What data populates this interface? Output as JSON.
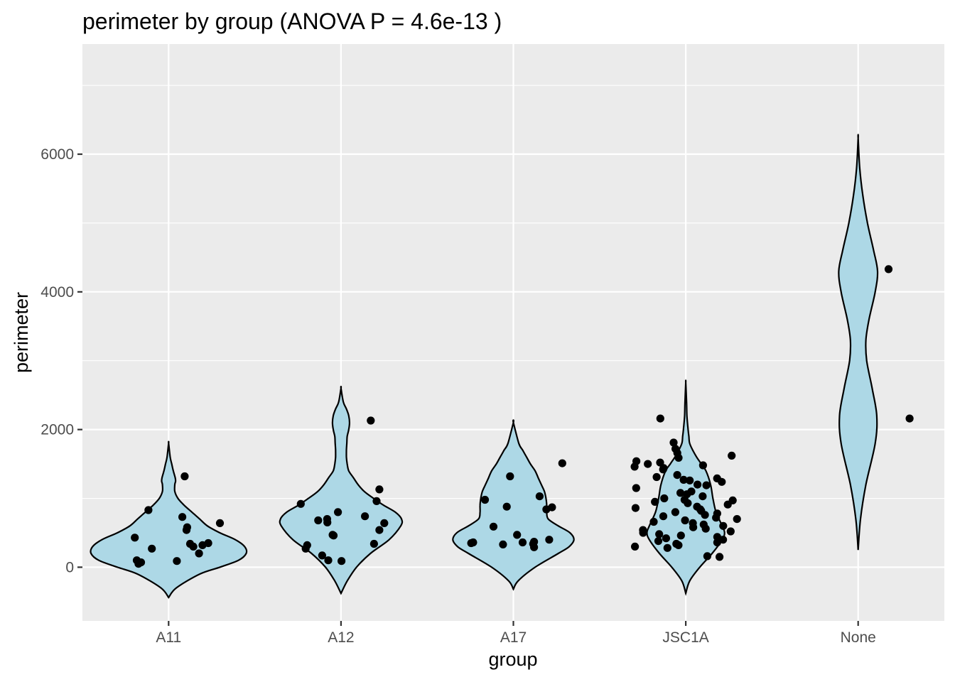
{
  "chart_data": {
    "type": "violin",
    "title": "perimeter by group (ANOVA P = 4.6e-13 )",
    "xlabel": "group",
    "ylabel": "perimeter",
    "categories": [
      "A11",
      "A12",
      "A17",
      "JSC1A",
      "None"
    ],
    "ylim": [
      -780,
      7600
    ],
    "yticks": [
      0,
      2000,
      4000,
      6000
    ],
    "ytick_labels": [
      "0",
      "2000",
      "4000",
      "6000"
    ],
    "grid": true,
    "legend": "none",
    "colors": {
      "violin_fill": "#add8e6",
      "violin_stroke": "#000000",
      "point": "#000000",
      "panel_bg": "#ebebeb",
      "grid": "#ffffff"
    },
    "violins": [
      {
        "group": "A11",
        "y": [
          -440,
          -300,
          -100,
          0,
          100,
          200,
          300,
          400,
          500,
          600,
          700,
          800,
          900,
          1000,
          1100,
          1200,
          1250,
          1300,
          1400,
          1500,
          1600,
          1800
        ],
        "w": [
          0,
          0.1,
          0.4,
          0.66,
          0.9,
          1.0,
          0.98,
          0.86,
          0.66,
          0.5,
          0.4,
          0.3,
          0.2,
          0.12,
          0.08,
          0.08,
          0.09,
          0.085,
          0.06,
          0.04,
          0.02,
          0
        ]
      },
      {
        "group": "A12",
        "y": [
          -380,
          -200,
          0,
          200,
          400,
          600,
          700,
          800,
          900,
          1000,
          1100,
          1200,
          1300,
          1400,
          1500,
          1600,
          1700,
          1800,
          1900,
          2000,
          2100,
          2200,
          2300,
          2400,
          2600
        ],
        "w": [
          0,
          0.08,
          0.2,
          0.38,
          0.62,
          0.77,
          0.78,
          0.7,
          0.55,
          0.42,
          0.3,
          0.22,
          0.16,
          0.1,
          0.08,
          0.07,
          0.07,
          0.075,
          0.08,
          0.1,
          0.11,
          0.1,
          0.07,
          0.03,
          0
        ]
      },
      {
        "group": "A17",
        "y": [
          -320,
          -200,
          0,
          200,
          300,
          400,
          500,
          600,
          700,
          800,
          900,
          1000,
          1100,
          1200,
          1300,
          1400,
          1500,
          1600,
          1700,
          1800,
          2100
        ],
        "w": [
          0,
          0.06,
          0.28,
          0.58,
          0.72,
          0.78,
          0.73,
          0.58,
          0.45,
          0.43,
          0.43,
          0.42,
          0.4,
          0.36,
          0.32,
          0.28,
          0.22,
          0.17,
          0.12,
          0.07,
          0
        ]
      },
      {
        "group": "JSC1A",
        "y": [
          -380,
          -200,
          0,
          200,
          400,
          500,
          600,
          800,
          1000,
          1200,
          1400,
          1500,
          1600,
          1700,
          1800,
          1900,
          2000,
          2200,
          2400,
          2680
        ],
        "w": [
          0,
          0.05,
          0.18,
          0.34,
          0.47,
          0.5,
          0.47,
          0.39,
          0.35,
          0.32,
          0.26,
          0.2,
          0.14,
          0.09,
          0.05,
          0.04,
          0.03,
          0.015,
          0.01,
          0
        ]
      },
      {
        "group": "None",
        "y": [
          250,
          700,
          1200,
          1800,
          2200,
          2600,
          3000,
          3300,
          3600,
          4000,
          4300,
          4600,
          5000,
          5400,
          5800,
          6230
        ],
        "w": [
          0,
          0.03,
          0.1,
          0.22,
          0.24,
          0.18,
          0.11,
          0.1,
          0.14,
          0.22,
          0.25,
          0.2,
          0.12,
          0.06,
          0.02,
          0
        ]
      }
    ],
    "points": [
      {
        "group": "A11",
        "values": [
          1320,
          830,
          730,
          640,
          580,
          540,
          430,
          350,
          340,
          320,
          300,
          270,
          200,
          100,
          90,
          70,
          50
        ]
      },
      {
        "group": "A12",
        "values": [
          2130,
          1130,
          960,
          920,
          800,
          740,
          700,
          680,
          650,
          640,
          540,
          470,
          460,
          340,
          320,
          270,
          170,
          100,
          90
        ]
      },
      {
        "group": "A17",
        "values": [
          1510,
          1320,
          1030,
          980,
          880,
          870,
          840,
          590,
          470,
          400,
          370,
          360,
          360,
          350,
          340,
          330,
          290
        ]
      },
      {
        "group": "JSC1A",
        "values": [
          2160,
          1810,
          1720,
          1660,
          1620,
          1590,
          1540,
          1520,
          1500,
          1480,
          1460,
          1440,
          1420,
          1340,
          1310,
          1290,
          1270,
          1260,
          1240,
          1200,
          1190,
          1150,
          1100,
          1080,
          1060,
          1030,
          1000,
          980,
          970,
          950,
          930,
          910,
          880,
          860,
          840,
          820,
          800,
          780,
          760,
          740,
          720,
          700,
          680,
          660,
          640,
          620,
          600,
          580,
          560,
          540,
          520,
          500,
          480,
          460,
          440,
          420,
          400,
          380,
          360,
          340,
          320,
          300,
          280,
          160,
          150
        ]
      },
      {
        "group": "None",
        "values": [
          4330,
          2160
        ]
      }
    ]
  }
}
